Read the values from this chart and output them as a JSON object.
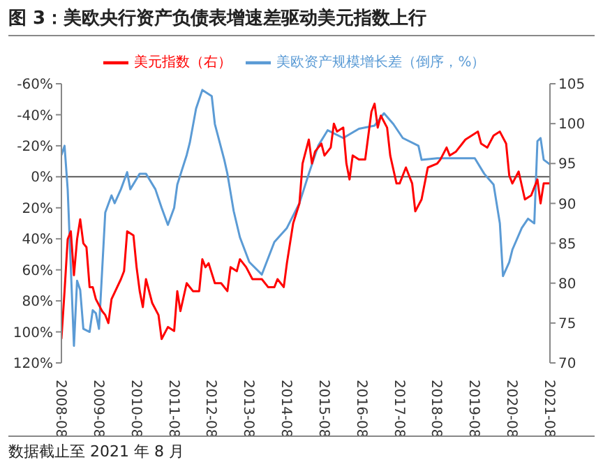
{
  "chart_data": {
    "type": "line",
    "title": "图 3：美欧央行资产负债表增速差驱动美元指数上行",
    "annotations": [
      "数据截止至 2021 年 8 月"
    ],
    "series": [
      {
        "name": "美欧资产规模增长差（倒序，%）",
        "color": "#5b9bd5",
        "axis": "y",
        "x": [
          "2008-08",
          "2008-09",
          "2008-10",
          "2008-12",
          "2009-01",
          "2009-02",
          "2009-03",
          "2009-05",
          "2009-06",
          "2009-07",
          "2009-08",
          "2009-10",
          "2009-12",
          "2010-01",
          "2010-03",
          "2010-05",
          "2010-06",
          "2010-09",
          "2010-11",
          "2011-02",
          "2011-04",
          "2011-06",
          "2011-08",
          "2011-09",
          "2011-12",
          "2012-01",
          "2012-03",
          "2012-05",
          "2012-08",
          "2012-09",
          "2012-12",
          "2013-01",
          "2013-03",
          "2013-05",
          "2013-08",
          "2013-12",
          "2014-04",
          "2014-08",
          "2014-12",
          "2015-03",
          "2015-06",
          "2015-09",
          "2016-02",
          "2016-07",
          "2016-12",
          "2017-03",
          "2017-06",
          "2017-09",
          "2018-02",
          "2018-03",
          "2018-08",
          "2019-03",
          "2019-08",
          "2019-11",
          "2020-02",
          "2020-04",
          "2020-05",
          "2020-07",
          "2020-08",
          "2020-11",
          "2021-01",
          "2021-03",
          "2021-04",
          "2021-05",
          "2021-06",
          "2021-08"
        ],
        "values": [
          -14,
          -20,
          8,
          109,
          67,
          73,
          98,
          100,
          86,
          88,
          98,
          23,
          12,
          17,
          8,
          -3,
          8,
          -2,
          -2,
          8,
          20,
          31,
          20,
          5,
          -14,
          -22,
          -44,
          -56,
          -52,
          -34,
          -11,
          -2,
          22,
          39,
          55,
          63,
          42,
          33,
          17,
          -2,
          -20,
          -30,
          -25,
          -31,
          -33,
          -41,
          -34,
          -25,
          -20,
          -11,
          -12,
          -12,
          -12,
          -2,
          5,
          30,
          64,
          55,
          47,
          33,
          27,
          30,
          -23,
          -25,
          -11,
          -8
        ]
      },
      {
        "name": "美元指数（右）",
        "color": "#ff0000",
        "axis": "y2",
        "x": [
          "2008-08",
          "2008-09",
          "2008-10",
          "2008-11",
          "2008-12",
          "2009-01",
          "2009-02",
          "2009-03",
          "2009-04",
          "2009-05",
          "2009-06",
          "2009-07",
          "2009-09",
          "2009-10",
          "2009-11",
          "2009-12",
          "2010-03",
          "2010-04",
          "2010-05",
          "2010-07",
          "2010-08",
          "2010-09",
          "2010-10",
          "2010-11",
          "2011-01",
          "2011-03",
          "2011-04",
          "2011-06",
          "2011-08",
          "2011-09",
          "2011-10",
          "2011-12",
          "2012-02",
          "2012-04",
          "2012-05",
          "2012-06",
          "2012-07",
          "2012-09",
          "2012-11",
          "2013-01",
          "2013-02",
          "2013-04",
          "2013-05",
          "2013-07",
          "2013-09",
          "2013-12",
          "2014-02",
          "2014-04",
          "2014-05",
          "2014-07",
          "2014-08",
          "2014-10",
          "2014-12",
          "2015-01",
          "2015-03",
          "2015-04",
          "2015-05",
          "2015-07",
          "2015-08",
          "2015-10",
          "2015-11",
          "2015-12",
          "2016-02",
          "2016-03",
          "2016-04",
          "2016-05",
          "2016-07",
          "2016-09",
          "2016-11",
          "2016-12",
          "2017-01",
          "2017-02",
          "2017-04",
          "2017-05",
          "2017-07",
          "2017-08",
          "2017-10",
          "2017-12",
          "2018-01",
          "2018-03",
          "2018-05",
          "2018-08",
          "2018-09",
          "2018-11",
          "2018-12",
          "2019-02",
          "2019-04",
          "2019-05",
          "2019-07",
          "2019-09",
          "2019-10",
          "2019-12",
          "2020-02",
          "2020-04",
          "2020-06",
          "2020-07",
          "2020-08",
          "2020-10",
          "2020-12",
          "2021-02",
          "2021-04",
          "2021-05",
          "2021-06",
          "2021-08"
        ],
        "values": [
          73,
          79,
          85.5,
          86.5,
          81,
          85.5,
          88,
          85,
          84.5,
          79.5,
          79.5,
          78,
          76.5,
          76,
          75,
          78,
          80.5,
          81.5,
          86.5,
          86,
          82,
          79,
          77,
          80.5,
          77.5,
          76,
          73,
          74.5,
          74,
          79,
          76.5,
          80,
          79,
          79,
          83,
          82,
          82.5,
          80,
          80,
          79,
          82,
          81.5,
          83,
          82,
          80.5,
          80.5,
          79.5,
          79.5,
          80.5,
          79.5,
          82.5,
          87.5,
          90,
          95,
          98,
          95,
          96.5,
          97.5,
          96,
          97,
          100,
          99,
          99.5,
          95,
          93,
          96,
          95.5,
          95.5,
          101.5,
          102.5,
          99.5,
          101,
          99.5,
          96,
          92.5,
          92.5,
          94.5,
          92.5,
          89,
          90.5,
          94.5,
          95,
          95.5,
          97,
          96,
          96.5,
          97.5,
          98,
          98.5,
          99,
          97.5,
          97,
          98.5,
          99,
          97.5,
          93.5,
          92.5,
          94,
          90.5,
          91,
          93,
          90,
          92.5,
          92.5
        ]
      }
    ],
    "xlim": [
      "2008-08",
      "2021-08"
    ],
    "xticks": [
      "2008-08",
      "2009-08",
      "2010-08",
      "2011-08",
      "2012-08",
      "2013-08",
      "2014-08",
      "2015-08",
      "2016-08",
      "2017-08",
      "2018-08",
      "2019-08",
      "2020-08",
      "2021-08"
    ],
    "ylim": [
      120,
      -60
    ],
    "yticks": [
      {
        "value": -60,
        "label": "-60%"
      },
      {
        "value": -40,
        "label": "-40%"
      },
      {
        "value": -20,
        "label": "-20%"
      },
      {
        "value": 0,
        "label": "0%"
      },
      {
        "value": 20,
        "label": "20%"
      },
      {
        "value": 40,
        "label": "40%"
      },
      {
        "value": 60,
        "label": "60%"
      },
      {
        "value": 80,
        "label": "80%"
      },
      {
        "value": 100,
        "label": "100%"
      },
      {
        "value": 120,
        "label": "120%"
      }
    ],
    "y2lim": [
      70,
      105
    ],
    "y2ticks": [
      70,
      75,
      80,
      85,
      90,
      95,
      100,
      105
    ],
    "ref_lines": [
      {
        "axis": "y",
        "value": 0,
        "color": "#595959"
      }
    ],
    "grid": false,
    "legend": "top",
    "marker": "none",
    "line_style": "solid"
  }
}
